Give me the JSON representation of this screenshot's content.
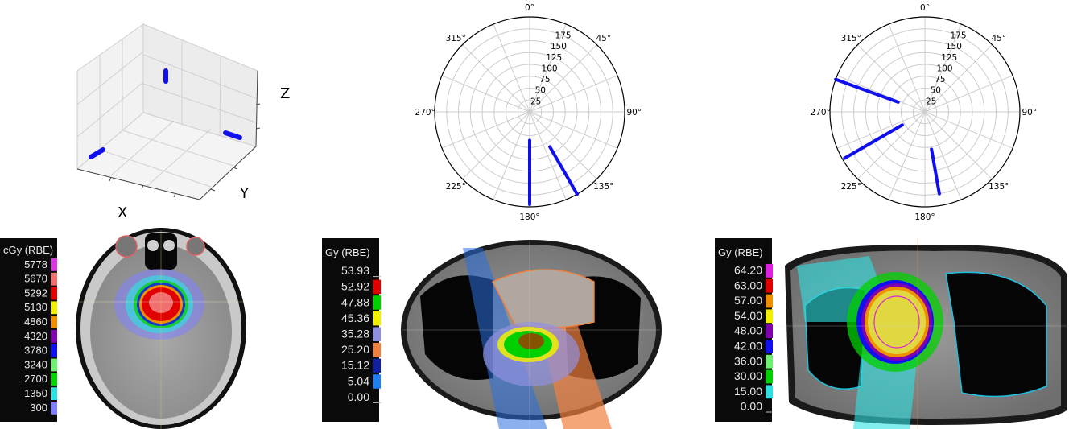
{
  "chart_data": [
    {
      "type": "scatter",
      "projection": "3d",
      "xlabel": "X",
      "ylabel": "Y",
      "zlabel": "Z",
      "series_color": "#1010ee",
      "beams": 3
    },
    {
      "type": "line",
      "projection": "polar",
      "theta_direction": "clockwise",
      "theta_zero": "top",
      "angle_ticks": [
        "0°",
        "45°",
        "90°",
        "135°",
        "180°",
        "225°",
        "270°",
        "315°"
      ],
      "radial_ticks": [
        "25",
        "50",
        "75",
        "100",
        "125",
        "150",
        "175"
      ],
      "rlim": [
        0,
        200
      ],
      "series_color": "#1010ee",
      "series": [
        {
          "theta": 180,
          "r": [
            60,
            195
          ]
        },
        {
          "theta": 150,
          "r": [
            85,
            200
          ]
        }
      ]
    },
    {
      "type": "line",
      "projection": "polar",
      "theta_direction": "clockwise",
      "theta_zero": "top",
      "angle_ticks": [
        "0°",
        "45°",
        "90°",
        "135°",
        "180°",
        "225°",
        "270°",
        "315°"
      ],
      "radial_ticks": [
        "25",
        "50",
        "75",
        "100",
        "125",
        "150",
        "175"
      ],
      "rlim": [
        0,
        200
      ],
      "series_color": "#1010ee",
      "series": [
        {
          "theta": 290,
          "r": [
            60,
            200
          ]
        },
        {
          "theta": 240,
          "r": [
            55,
            195
          ]
        },
        {
          "theta": 170,
          "r": [
            80,
            175
          ]
        }
      ]
    }
  ],
  "dose_panels": [
    {
      "unit": "cGy (RBE)",
      "levels": [
        {
          "value": "5778",
          "color": "#d63adf"
        },
        {
          "value": "5670",
          "color": "#f07070"
        },
        {
          "value": "5292",
          "color": "#e00000"
        },
        {
          "value": "5130",
          "color": "#f0f000"
        },
        {
          "value": "4860",
          "color": "#f09000"
        },
        {
          "value": "4320",
          "color": "#8000b0"
        },
        {
          "value": "3780",
          "color": "#1010f0"
        },
        {
          "value": "3240",
          "color": "#70f070"
        },
        {
          "value": "2700",
          "color": "#00d000"
        },
        {
          "value": "1350",
          "color": "#30e0e0"
        },
        {
          "value": "300",
          "color": "#8080ff"
        }
      ]
    },
    {
      "unit": "Gy (RBE)",
      "levels": [
        {
          "value": "53.93",
          "color": ""
        },
        {
          "value": "52.92",
          "color": "#e00000"
        },
        {
          "value": "47.88",
          "color": "#00d000"
        },
        {
          "value": "45.36",
          "color": "#f0f000"
        },
        {
          "value": "35.28",
          "color": "#9090e0"
        },
        {
          "value": "25.20",
          "color": "#f08040"
        },
        {
          "value": "15.12",
          "color": "#1020a0"
        },
        {
          "value": "5.04",
          "color": "#2080f0"
        },
        {
          "value": "0.00",
          "color": ""
        }
      ]
    },
    {
      "unit": "Gy (RBE)",
      "levels": [
        {
          "value": "64.20",
          "color": "#e020e0"
        },
        {
          "value": "63.00",
          "color": "#e00000"
        },
        {
          "value": "57.00",
          "color": "#f09000"
        },
        {
          "value": "54.00",
          "color": "#f0f000"
        },
        {
          "value": "48.00",
          "color": "#8000b0"
        },
        {
          "value": "42.00",
          "color": "#1010f0"
        },
        {
          "value": "36.00",
          "color": "#70f070"
        },
        {
          "value": "30.00",
          "color": "#00d000"
        },
        {
          "value": "15.00",
          "color": "#30e0e0"
        },
        {
          "value": "0.00",
          "color": ""
        }
      ]
    }
  ]
}
